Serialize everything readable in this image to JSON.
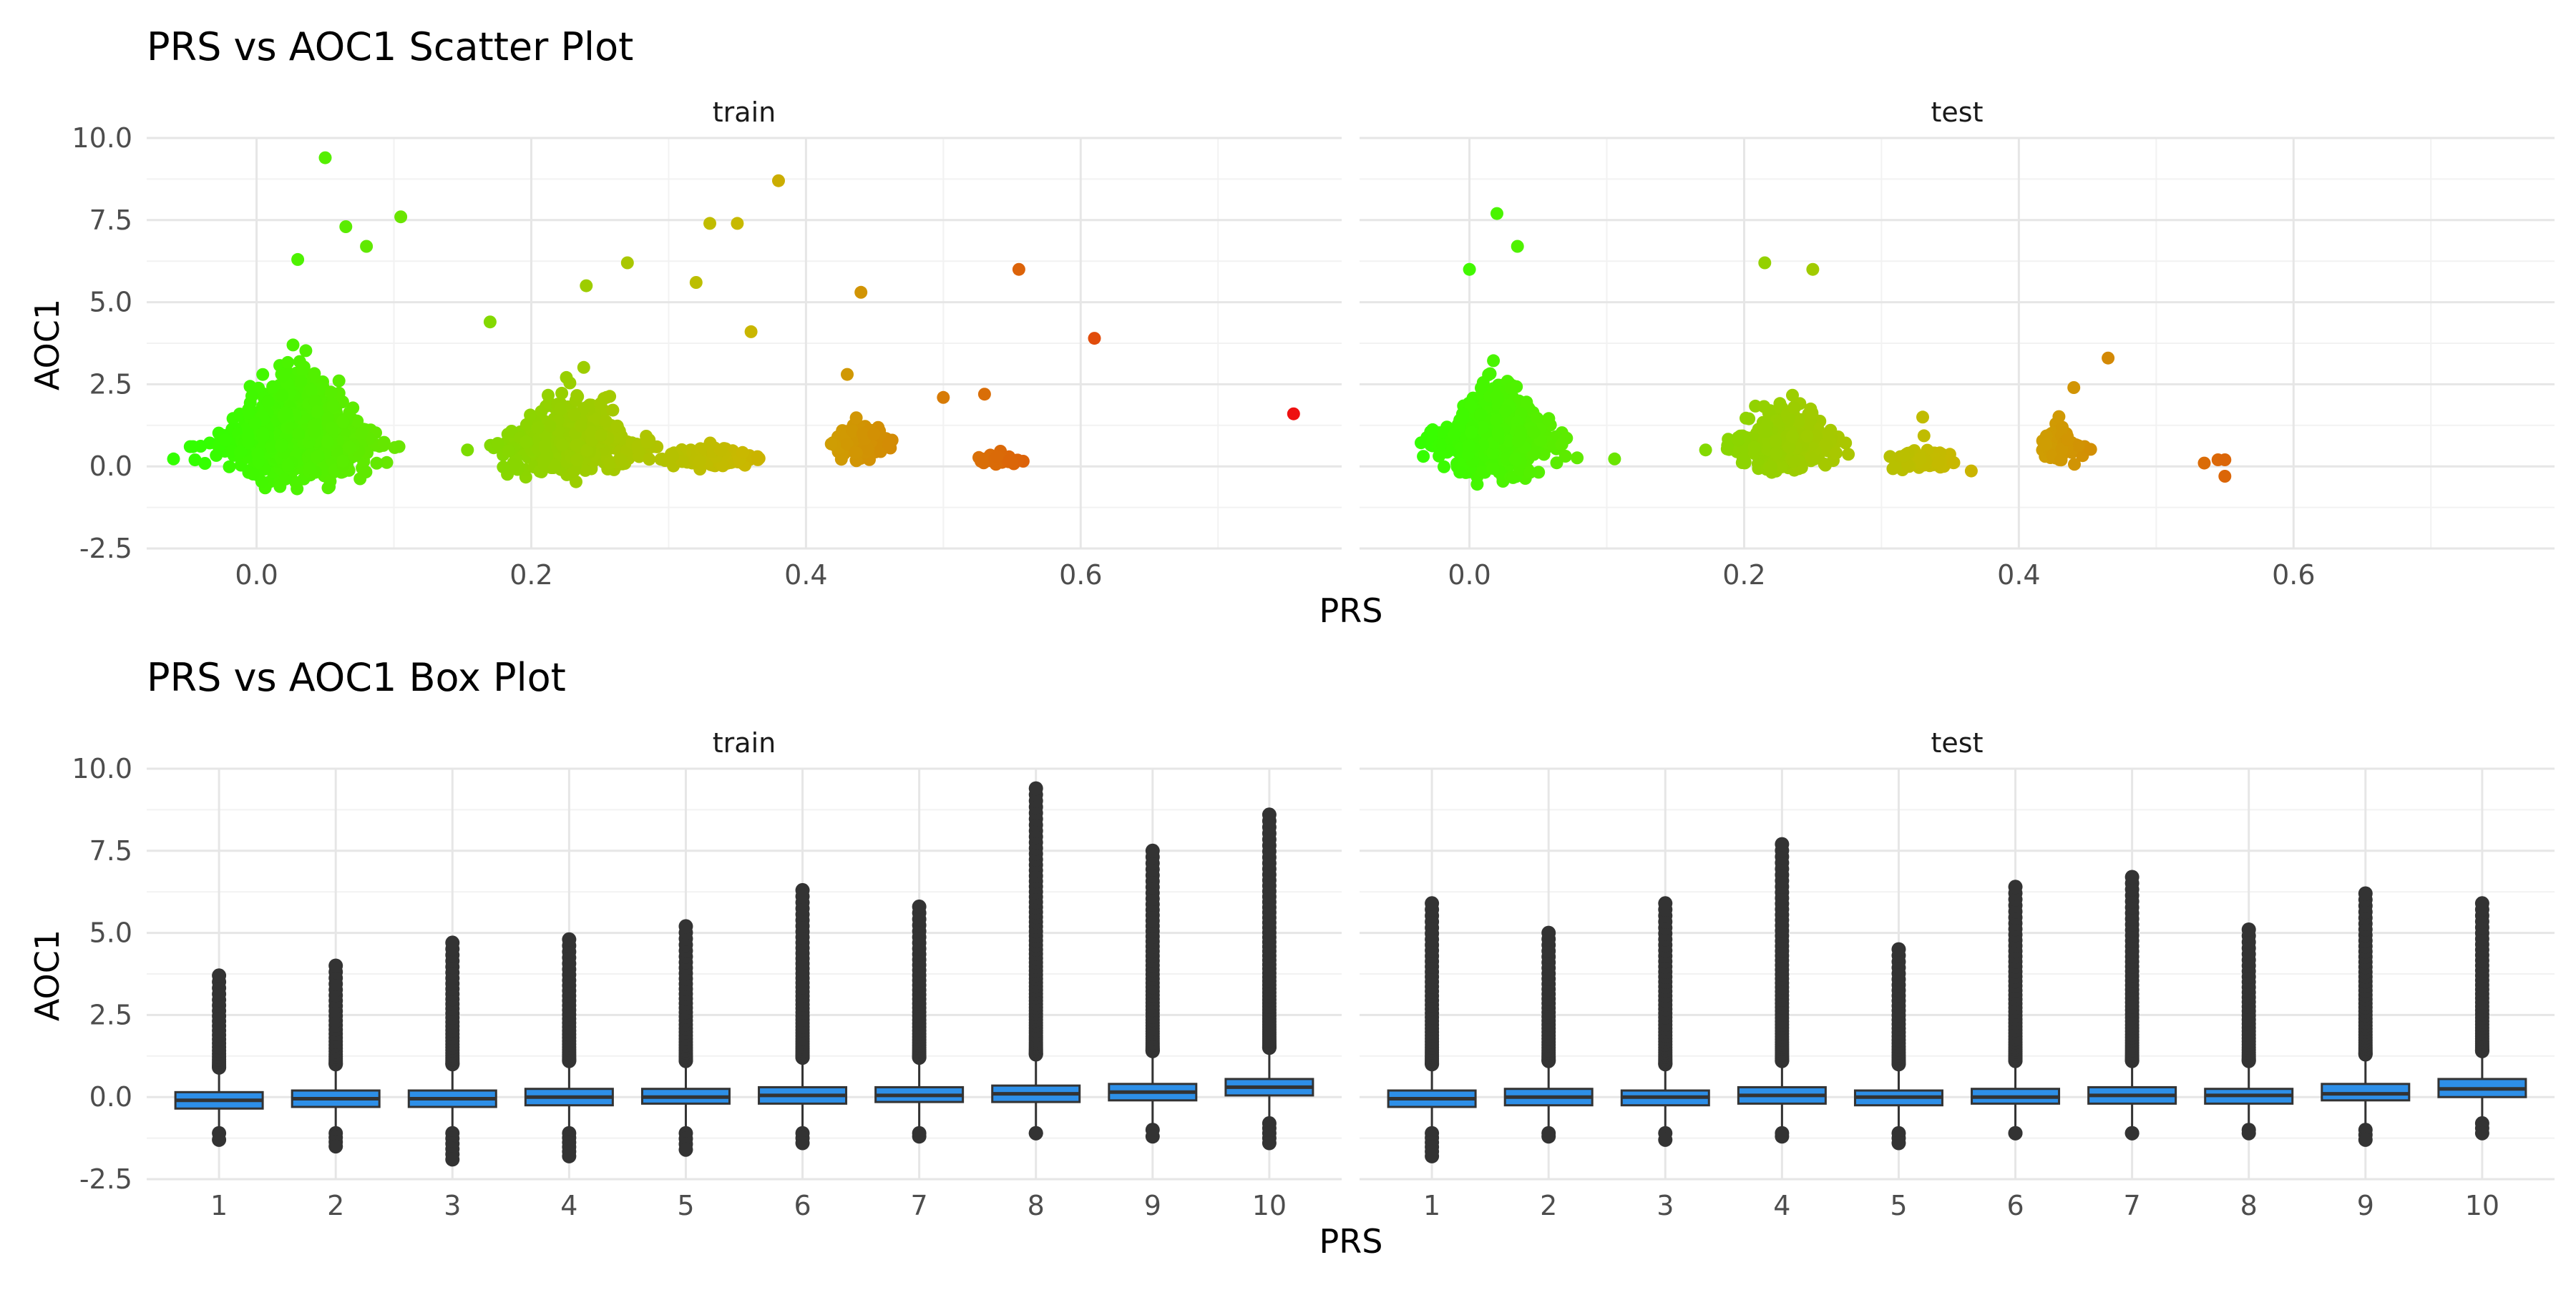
{
  "chart_data": [
    {
      "type": "scatter",
      "title": "PRS vs AOC1 Scatter Plot",
      "xlabel": "PRS",
      "ylabel": "AOC1",
      "xlim": [
        -0.08,
        0.79
      ],
      "ylim": [
        -2.5,
        10.0
      ],
      "x_ticks": [
        "0.0",
        "0.2",
        "0.4",
        "0.6"
      ],
      "y_ticks": [
        "-2.5",
        "0.0",
        "2.5",
        "5.0",
        "7.5",
        "10.0"
      ],
      "x_tick_values": [
        0.0,
        0.2,
        0.4,
        0.6
      ],
      "y_tick_values": [
        -2.5,
        0.0,
        2.5,
        5.0,
        7.5,
        10.0
      ],
      "color_scale": {
        "low": "#33ff00",
        "mid": "#c9b800",
        "high": "#ee1111",
        "domain": [
          -0.04,
          0.75
        ]
      },
      "grid": true,
      "facets": [
        {
          "label": "train",
          "clusters": [
            {
              "x_center": 0.03,
              "x_spread": 0.045,
              "y_center": 0.6,
              "y_spread": 1.4,
              "count": 1400
            },
            {
              "x_center": 0.23,
              "x_spread": 0.045,
              "y_center": 0.5,
              "y_spread": 1.1,
              "count": 650
            },
            {
              "x_center": 0.33,
              "x_spread": 0.03,
              "y_center": 0.2,
              "y_spread": 0.35,
              "count": 160
            },
            {
              "x_center": 0.44,
              "x_spread": 0.02,
              "y_center": 0.6,
              "y_spread": 0.5,
              "count": 220
            },
            {
              "x_center": 0.54,
              "x_spread": 0.012,
              "y_center": 0.15,
              "y_spread": 0.2,
              "count": 40
            }
          ],
          "points": [
            {
              "x": 0.05,
              "y": 9.4
            },
            {
              "x": 0.105,
              "y": 7.6
            },
            {
              "x": 0.065,
              "y": 7.3
            },
            {
              "x": 0.03,
              "y": 6.3
            },
            {
              "x": 0.38,
              "y": 8.7
            },
            {
              "x": 0.33,
              "y": 7.4
            },
            {
              "x": 0.35,
              "y": 7.4
            },
            {
              "x": 0.27,
              "y": 6.2
            },
            {
              "x": 0.32,
              "y": 5.6
            },
            {
              "x": 0.24,
              "y": 5.5
            },
            {
              "x": 0.44,
              "y": 5.3
            },
            {
              "x": 0.555,
              "y": 6.0
            },
            {
              "x": 0.61,
              "y": 3.9
            },
            {
              "x": 0.755,
              "y": 1.6
            },
            {
              "x": 0.5,
              "y": 2.1
            },
            {
              "x": 0.53,
              "y": 2.2
            },
            {
              "x": 0.43,
              "y": 2.8
            },
            {
              "x": 0.17,
              "y": 4.4
            },
            {
              "x": 0.08,
              "y": 6.7
            },
            {
              "x": 0.36,
              "y": 4.1
            }
          ]
        },
        {
          "label": "test",
          "clusters": [
            {
              "x_center": 0.02,
              "x_spread": 0.04,
              "y_center": 0.6,
              "y_spread": 1.3,
              "count": 700
            },
            {
              "x_center": 0.23,
              "x_spread": 0.035,
              "y_center": 0.5,
              "y_spread": 1.0,
              "count": 330
            },
            {
              "x_center": 0.33,
              "x_spread": 0.025,
              "y_center": 0.1,
              "y_spread": 0.35,
              "count": 80
            },
            {
              "x_center": 0.43,
              "x_spread": 0.015,
              "y_center": 0.5,
              "y_spread": 0.55,
              "count": 90
            }
          ],
          "points": [
            {
              "x": 0.02,
              "y": 7.7
            },
            {
              "x": 0.035,
              "y": 6.7
            },
            {
              "x": 0.0,
              "y": 6.0
            },
            {
              "x": 0.215,
              "y": 6.2
            },
            {
              "x": 0.25,
              "y": 6.0
            },
            {
              "x": 0.465,
              "y": 3.3
            },
            {
              "x": 0.535,
              "y": 0.1
            },
            {
              "x": 0.545,
              "y": 0.2
            },
            {
              "x": 0.55,
              "y": 0.2
            },
            {
              "x": 0.55,
              "y": -0.3
            },
            {
              "x": 0.33,
              "y": 1.5
            },
            {
              "x": 0.44,
              "y": 2.4
            }
          ]
        }
      ]
    },
    {
      "type": "box",
      "title": "PRS vs AOC1 Box Plot",
      "xlabel": "PRS",
      "ylabel": "AOC1",
      "categories": [
        "1",
        "2",
        "3",
        "4",
        "5",
        "6",
        "7",
        "8",
        "9",
        "10"
      ],
      "ylim": [
        -2.5,
        10.0
      ],
      "y_ticks": [
        "-2.5",
        "0.0",
        "2.5",
        "5.0",
        "7.5",
        "10.0"
      ],
      "y_tick_values": [
        -2.5,
        0.0,
        2.5,
        5.0,
        7.5,
        10.0
      ],
      "box_color": "#2d8fe8",
      "grid": true,
      "facets": [
        {
          "label": "train",
          "boxes": [
            {
              "q1": -0.35,
              "median": -0.1,
              "q3": 0.15,
              "whisker_low": -0.9,
              "whisker_high": 0.7,
              "outlier_low": -1.3,
              "outlier_high": 3.7
            },
            {
              "q1": -0.3,
              "median": -0.05,
              "q3": 0.2,
              "whisker_low": -0.9,
              "whisker_high": 0.8,
              "outlier_low": -1.5,
              "outlier_high": 4.0
            },
            {
              "q1": -0.3,
              "median": -0.05,
              "q3": 0.2,
              "whisker_low": -0.9,
              "whisker_high": 0.8,
              "outlier_low": -1.9,
              "outlier_high": 4.7
            },
            {
              "q1": -0.25,
              "median": 0.0,
              "q3": 0.25,
              "whisker_low": -0.9,
              "whisker_high": 0.9,
              "outlier_low": -1.8,
              "outlier_high": 4.8
            },
            {
              "q1": -0.2,
              "median": 0.0,
              "q3": 0.25,
              "whisker_low": -0.9,
              "whisker_high": 0.9,
              "outlier_low": -1.6,
              "outlier_high": 5.2
            },
            {
              "q1": -0.2,
              "median": 0.05,
              "q3": 0.3,
              "whisker_low": -0.9,
              "whisker_high": 1.0,
              "outlier_low": -1.4,
              "outlier_high": 6.3
            },
            {
              "q1": -0.15,
              "median": 0.05,
              "q3": 0.3,
              "whisker_low": -0.9,
              "whisker_high": 1.0,
              "outlier_low": -1.2,
              "outlier_high": 5.8
            },
            {
              "q1": -0.15,
              "median": 0.1,
              "q3": 0.35,
              "whisker_low": -0.9,
              "whisker_high": 1.1,
              "outlier_low": -1.1,
              "outlier_high": 9.4
            },
            {
              "q1": -0.1,
              "median": 0.15,
              "q3": 0.4,
              "whisker_low": -0.8,
              "whisker_high": 1.2,
              "outlier_low": -1.2,
              "outlier_high": 7.5
            },
            {
              "q1": 0.05,
              "median": 0.3,
              "q3": 0.55,
              "whisker_low": -0.6,
              "whisker_high": 1.3,
              "outlier_low": -1.4,
              "outlier_high": 8.6
            }
          ]
        },
        {
          "label": "test",
          "boxes": [
            {
              "q1": -0.3,
              "median": -0.05,
              "q3": 0.2,
              "whisker_low": -0.9,
              "whisker_high": 0.8,
              "outlier_low": -1.8,
              "outlier_high": 5.9
            },
            {
              "q1": -0.25,
              "median": 0.0,
              "q3": 0.25,
              "whisker_low": -0.9,
              "whisker_high": 0.9,
              "outlier_low": -1.2,
              "outlier_high": 5.0
            },
            {
              "q1": -0.25,
              "median": 0.0,
              "q3": 0.2,
              "whisker_low": -0.9,
              "whisker_high": 0.8,
              "outlier_low": -1.3,
              "outlier_high": 5.9
            },
            {
              "q1": -0.2,
              "median": 0.05,
              "q3": 0.3,
              "whisker_low": -0.9,
              "whisker_high": 0.9,
              "outlier_low": -1.2,
              "outlier_high": 7.7
            },
            {
              "q1": -0.25,
              "median": 0.0,
              "q3": 0.2,
              "whisker_low": -0.9,
              "whisker_high": 0.8,
              "outlier_low": -1.4,
              "outlier_high": 4.5
            },
            {
              "q1": -0.2,
              "median": 0.0,
              "q3": 0.25,
              "whisker_low": -0.9,
              "whisker_high": 0.9,
              "outlier_low": -1.1,
              "outlier_high": 6.4
            },
            {
              "q1": -0.2,
              "median": 0.05,
              "q3": 0.3,
              "whisker_low": -0.9,
              "whisker_high": 0.9,
              "outlier_low": -1.1,
              "outlier_high": 6.7
            },
            {
              "q1": -0.2,
              "median": 0.05,
              "q3": 0.25,
              "whisker_low": -0.9,
              "whisker_high": 0.9,
              "outlier_low": -1.0,
              "outlier_high": 5.1
            },
            {
              "q1": -0.1,
              "median": 0.1,
              "q3": 0.4,
              "whisker_low": -0.8,
              "whisker_high": 1.1,
              "outlier_low": -1.3,
              "outlier_high": 6.2
            },
            {
              "q1": 0.0,
              "median": 0.25,
              "q3": 0.55,
              "whisker_low": -0.6,
              "whisker_high": 1.2,
              "outlier_low": -1.1,
              "outlier_high": 5.9
            }
          ]
        }
      ]
    }
  ]
}
